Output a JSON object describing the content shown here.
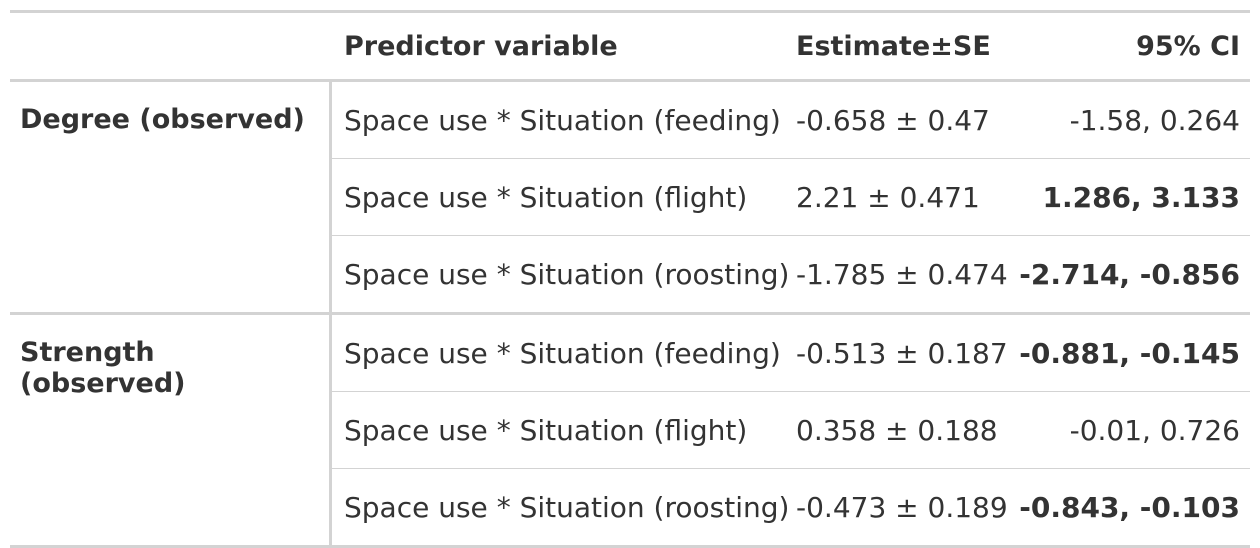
{
  "table": {
    "headers": {
      "stub": "",
      "predictor": "Predictor variable",
      "estimate": "Estimate±SE",
      "ci": "95% CI"
    },
    "groups": [
      {
        "label": "Degree (observed)",
        "rows": [
          {
            "predictor": "Space use * Situation (feeding)",
            "estimate": "-0.658 ± 0.47",
            "ci": "-1.58, 0.264",
            "ci_bold": false
          },
          {
            "predictor": "Space use * Situation (flight)",
            "estimate": "2.21 ± 0.471",
            "ci": "1.286, 3.133",
            "ci_bold": true
          },
          {
            "predictor": "Space use * Situation (roosting)",
            "estimate": "-1.785 ± 0.474",
            "ci": "-2.714, -0.856",
            "ci_bold": true
          }
        ]
      },
      {
        "label": "Strength (observed)",
        "rows": [
          {
            "predictor": "Space use * Situation (feeding)",
            "estimate": "-0.513 ± 0.187",
            "ci": "-0.881, -0.145",
            "ci_bold": true
          },
          {
            "predictor": "Space use * Situation (flight)",
            "estimate": "0.358 ± 0.188",
            "ci": "-0.01, 0.726",
            "ci_bold": false
          },
          {
            "predictor": "Space use * Situation (roosting)",
            "estimate": "-0.473 ± 0.189",
            "ci": "-0.843, -0.103",
            "ci_bold": true
          }
        ]
      }
    ]
  }
}
